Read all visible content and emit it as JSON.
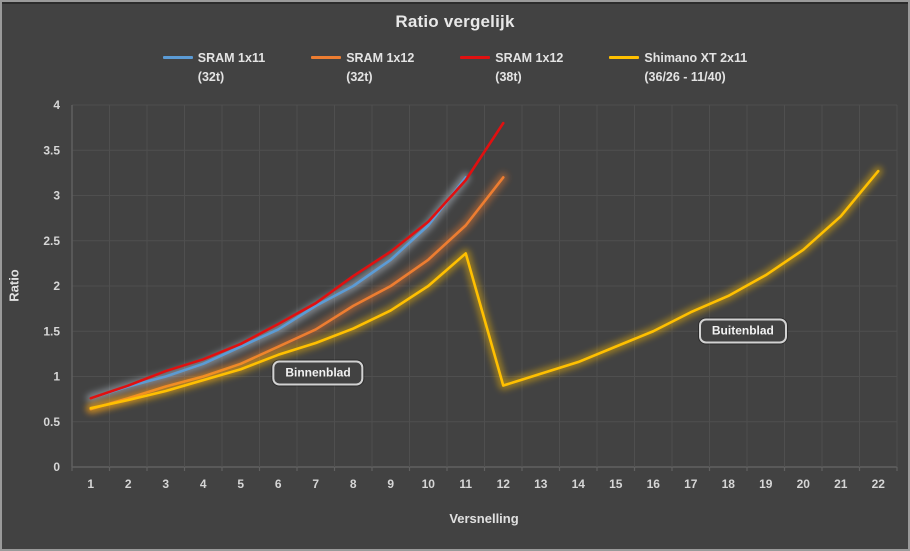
{
  "title": "Ratio vergelijk",
  "legend": {
    "items": [
      {
        "label": "SRAM 1x11",
        "sublabel": "(32t)",
        "color": "#5B9BD5"
      },
      {
        "label": "SRAM 1x12",
        "sublabel": "(32t)",
        "color": "#ED7D31"
      },
      {
        "label": "SRAM 1x12",
        "sublabel": "(38t)",
        "color": "#E01010"
      },
      {
        "label": "Shimano XT 2x11",
        "sublabel": "(36/26 - 11/40)",
        "color": "#FFC000"
      }
    ]
  },
  "chart_data": {
    "type": "line",
    "title": "Ratio vergelijk",
    "xlabel": "Versnelling",
    "ylabel": "Ratio",
    "ylim": [
      0,
      4
    ],
    "grid": true,
    "legend_position": "top",
    "x_ticks": [
      "1",
      "2",
      "3",
      "4",
      "5",
      "6",
      "7",
      "8",
      "9",
      "10",
      "11",
      "12",
      "13",
      "14",
      "15",
      "16",
      "17",
      "18",
      "19",
      "20",
      "21",
      "22"
    ],
    "y_ticks": [
      "0",
      "0.5",
      "1",
      "1.5",
      "2",
      "2.5",
      "3",
      "3.5",
      "4"
    ],
    "colors": {
      "background": "#424242",
      "grid": "#4f4f4f",
      "axis": "#616161",
      "text": "#d6d6d6"
    },
    "series": [
      {
        "name": "SRAM 1x11 (32t)",
        "color": "#5B9BD5",
        "glow": "#c9d6e4",
        "x": [
          1,
          2,
          3,
          4,
          5,
          6,
          7,
          8,
          9,
          10,
          11
        ],
        "values": [
          0.76,
          0.89,
          1.0,
          1.14,
          1.33,
          1.52,
          1.78,
          2.0,
          2.29,
          2.67,
          3.2
        ]
      },
      {
        "name": "SRAM 1x12 (32t)",
        "color": "#ED7D31",
        "glow": "#ED7D31",
        "x": [
          1,
          2,
          3,
          4,
          5,
          6,
          7,
          8,
          9,
          10,
          11,
          12
        ],
        "values": [
          0.64,
          0.76,
          0.89,
          1.0,
          1.14,
          1.33,
          1.52,
          1.78,
          2.0,
          2.29,
          2.67,
          3.2
        ]
      },
      {
        "name": "SRAM 1x12 (38t)",
        "color": "#E01010",
        "glow": null,
        "x": [
          1,
          2,
          3,
          4,
          5,
          6,
          7,
          8,
          9,
          10,
          11,
          12
        ],
        "values": [
          0.76,
          0.9,
          1.06,
          1.19,
          1.36,
          1.58,
          1.81,
          2.11,
          2.38,
          2.71,
          3.17,
          3.8
        ]
      },
      {
        "name": "Shimano XT 2x11 (36/26 - 11/40)",
        "color": "#FFC000",
        "glow": "#FFC000",
        "x": [
          1,
          2,
          3,
          4,
          5,
          6,
          7,
          8,
          9,
          10,
          11,
          12,
          13,
          14,
          15,
          16,
          17,
          18,
          19,
          20,
          21,
          22
        ],
        "values": [
          0.65,
          0.74,
          0.84,
          0.96,
          1.08,
          1.24,
          1.37,
          1.53,
          1.73,
          2.0,
          2.36,
          0.9,
          1.03,
          1.16,
          1.33,
          1.5,
          1.71,
          1.89,
          2.12,
          2.4,
          2.77,
          3.27
        ]
      }
    ],
    "annotations": [
      {
        "label": "Binnenblad",
        "x": 7.06,
        "y": 1.04
      },
      {
        "label": "Buitenblad",
        "x": 18.39,
        "y": 1.5
      }
    ]
  }
}
